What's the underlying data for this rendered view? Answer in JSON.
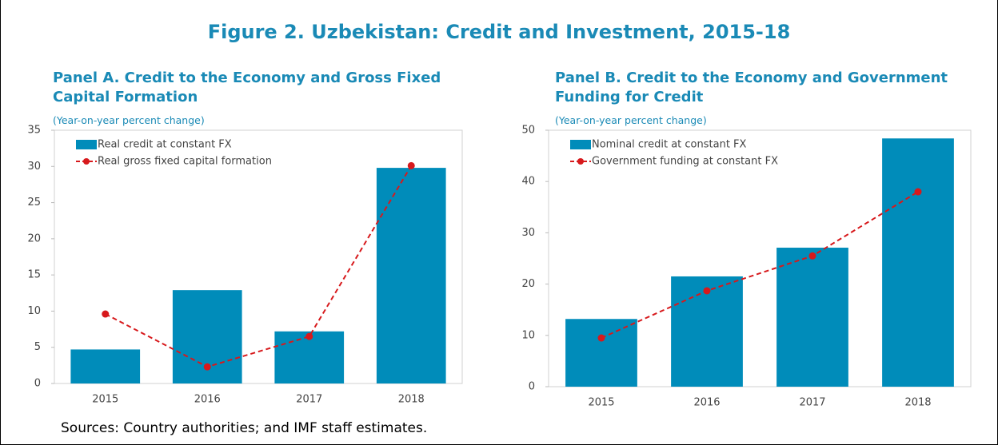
{
  "title": "Figure 2. Uzbekistan: Credit and Investment, 2015-18",
  "source": "Sources: Country authorities; and IMF staff estimates.",
  "chart_data": [
    {
      "type": "combo",
      "title": "Panel A. Credit to the Economy and Gross Fixed Capital Formation",
      "subtitle": "(Year-on-year percent change)",
      "categories": [
        "2015",
        "2016",
        "2017",
        "2018"
      ],
      "series": [
        {
          "name": "Real credit at constant FX",
          "type": "bar",
          "color": "#008cba",
          "values": [
            4.7,
            12.9,
            7.2,
            29.8
          ]
        },
        {
          "name": "Real gross fixed capital formation",
          "type": "line",
          "color": "#d7191c",
          "values": [
            9.6,
            2.3,
            6.5,
            30.1
          ]
        }
      ],
      "ylim": [
        0,
        35
      ],
      "yticks": [
        0,
        5,
        10,
        15,
        20,
        25,
        30,
        35
      ],
      "grid": false,
      "legend": "upper left"
    },
    {
      "type": "combo",
      "title": "Panel B. Credit to the Economy and Government Funding for Credit",
      "subtitle": "(Year-on-year percent change)",
      "categories": [
        "2015",
        "2016",
        "2017",
        "2018"
      ],
      "series": [
        {
          "name": "Nominal credit at constant FX",
          "type": "bar",
          "color": "#008cba",
          "values": [
            13.2,
            21.5,
            27.1,
            48.4
          ]
        },
        {
          "name": "Government funding at constant FX",
          "type": "line",
          "color": "#d7191c",
          "values": [
            9.5,
            18.7,
            25.5,
            38.0
          ]
        }
      ],
      "ylim": [
        0,
        50
      ],
      "yticks": [
        0,
        10,
        20,
        30,
        40,
        50
      ],
      "grid": false,
      "legend": "upper left"
    }
  ]
}
